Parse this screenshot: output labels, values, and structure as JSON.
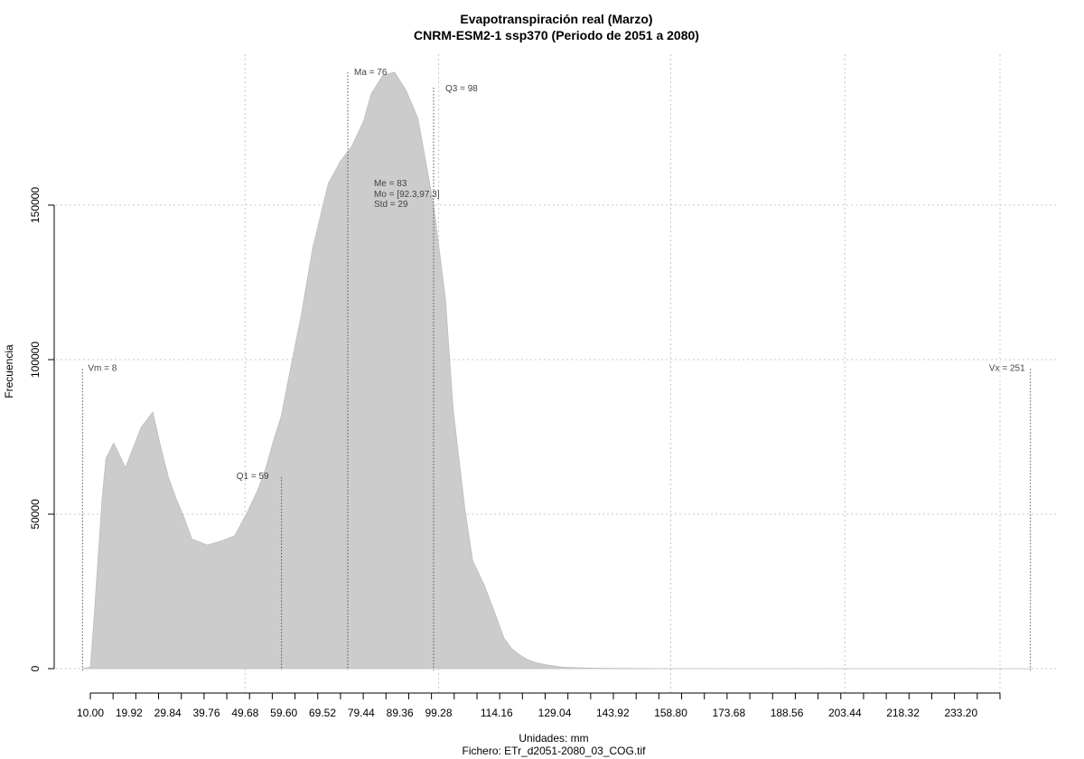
{
  "chart_data": {
    "type": "area",
    "title": "Evapotranspiración real (Marzo)",
    "subtitle": "CNRM-ESM2-1 ssp370 (Periodo de 2051 a 2080)",
    "xlabel": "Unidades: mm",
    "ylabel": "Frecuencia",
    "footer": "Fichero: ETr_d2051-2080_03_COG.tif",
    "xlim": [
      8,
      253
    ],
    "ylim": [
      0,
      200000
    ],
    "x_ticks": [
      "10.00",
      "19.92",
      "29.84",
      "39.76",
      "49.68",
      "59.60",
      "69.52",
      "79.44",
      "89.36",
      "99.28",
      "114.16",
      "129.04",
      "143.92",
      "158.80",
      "173.68",
      "188.56",
      "203.44",
      "218.32",
      "233.20"
    ],
    "y_ticks": [
      "0",
      "50000",
      "100000",
      "150000"
    ],
    "grid": true,
    "fill_color": "#cccccc",
    "x": [
      8,
      10,
      11,
      13,
      14,
      16,
      19,
      23,
      26,
      28,
      30,
      32,
      34,
      36,
      40,
      44,
      47,
      50,
      53,
      55,
      57,
      59,
      61,
      64,
      67,
      71,
      74,
      77,
      80,
      82,
      85,
      88,
      91,
      94,
      96,
      98,
      101,
      103,
      106,
      108,
      111,
      114,
      116,
      118,
      120,
      122,
      124,
      127,
      131,
      135,
      140,
      145,
      150,
      155,
      160,
      165,
      170,
      180,
      200,
      220,
      240,
      251
    ],
    "y": [
      0,
      500,
      17000,
      55000,
      68000,
      73000,
      65000,
      78000,
      83000,
      72000,
      62000,
      55000,
      49000,
      42000,
      40000,
      41500,
      43000,
      50000,
      58000,
      65000,
      74000,
      82000,
      95000,
      114000,
      136000,
      157000,
      164000,
      169000,
      177000,
      186000,
      192000,
      193000,
      187000,
      178000,
      164000,
      150000,
      120000,
      84000,
      52000,
      35000,
      27000,
      17000,
      10000,
      6500,
      4500,
      3000,
      2000,
      1200,
      500,
      300,
      150,
      80,
      50,
      30,
      20,
      15,
      10,
      8,
      5,
      3,
      2,
      0
    ],
    "annotations": {
      "vm": {
        "label": "Vm = 8",
        "x": 8,
        "y": 97000
      },
      "vx": {
        "label": "Vx = 251",
        "x": 251,
        "y": 97000
      },
      "q1": {
        "label": "Q1 = 59",
        "x": 59,
        "y": 62000
      },
      "ma": {
        "label": "Ma = 76",
        "x": 76,
        "y": 193000
      },
      "q3": {
        "label": "Q3 = 98",
        "x": 98,
        "y": 188000
      },
      "me": "Me = 83",
      "mo": "Mo = [92.3,97.3]",
      "std": "Std = 29"
    }
  }
}
